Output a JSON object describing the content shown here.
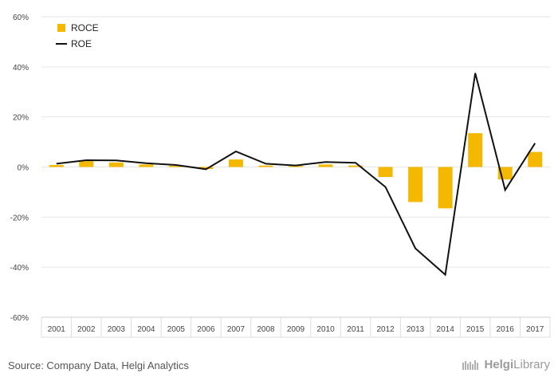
{
  "chart_data": {
    "type": "bar",
    "categories": [
      "2001",
      "2002",
      "2003",
      "2004",
      "2005",
      "2006",
      "2007",
      "2008",
      "2009",
      "2010",
      "2011",
      "2012",
      "2013",
      "2014",
      "2015",
      "2016",
      "2017"
    ],
    "series": [
      {
        "name": "ROCE",
        "type": "bar",
        "color": "#F5B800",
        "values": [
          0.8,
          2.3,
          1.8,
          1.0,
          0.5,
          -0.8,
          3.0,
          0.6,
          0.4,
          1.0,
          0.6,
          -4.0,
          -14.0,
          -16.5,
          13.5,
          -5.0,
          6.0
        ]
      },
      {
        "name": "ROE",
        "type": "line",
        "color": "#111111",
        "values": [
          1.3,
          2.7,
          2.6,
          1.5,
          0.8,
          -0.9,
          6.2,
          1.3,
          0.6,
          2.0,
          1.7,
          -8.0,
          -32.5,
          -43.0,
          37.5,
          -9.2,
          9.5
        ]
      }
    ],
    "y_ticks": [
      "60%",
      "40%",
      "20%",
      "0%",
      "-20%",
      "-40%",
      "-60%"
    ],
    "ylim": [
      -60,
      60
    ],
    "legend_position": "top-left",
    "grid": true
  },
  "footer": {
    "source": "Source: Company Data, Helgi Analytics",
    "brand_prefix": "Helgi",
    "brand_suffix": "Library"
  }
}
